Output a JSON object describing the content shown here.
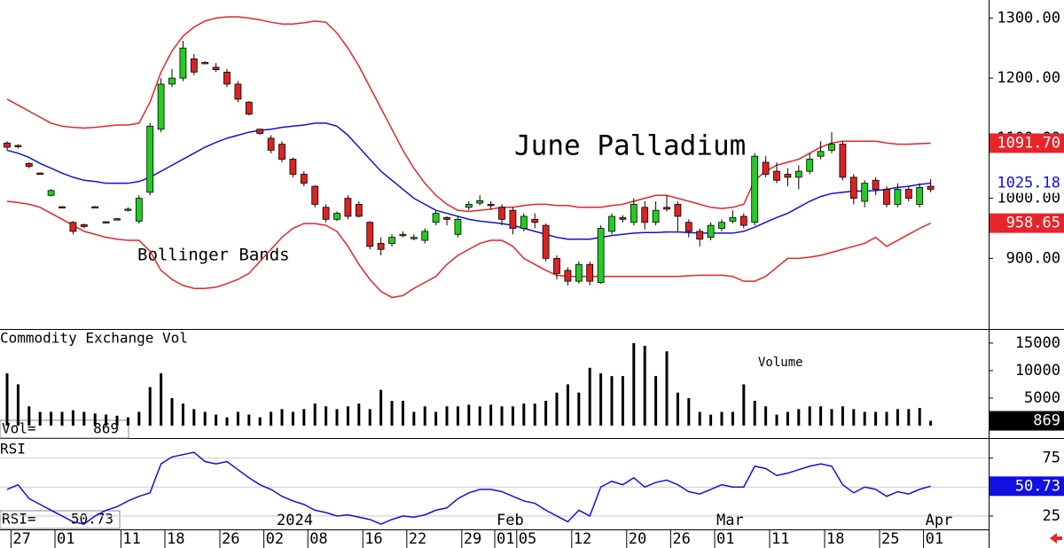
{
  "chart_data": [
    {
      "type": "candlestick",
      "title": "June Palladium",
      "annotation": "Bollinger Bands",
      "up_color": "#22cc22",
      "down_color": "#dd2222",
      "ylim": [
        784,
        1330
      ],
      "yticks": [
        {
          "value": 900,
          "label": "900.00"
        },
        {
          "value": 1000,
          "label": "1000.00"
        },
        {
          "value": 1100,
          "label": "1100.00"
        },
        {
          "value": 1200,
          "label": "1200.00"
        },
        {
          "value": 1300,
          "label": "1300.00"
        }
      ],
      "open": [
        1092,
        1088,
        1058,
        1042,
        1005,
        986,
        960,
        956,
        986,
        961,
        966,
        980,
        962,
        1010,
        1115,
        1190,
        1200,
        1232,
        1226,
        1218,
        1210,
        1190,
        1160,
        1115,
        1100,
        1090,
        1065,
        1040,
        1020,
        985,
        965,
        1000,
        990,
        960,
        925,
        925,
        940,
        935,
        930,
        960,
        968,
        940,
        985,
        992,
        990,
        985,
        980,
        950,
        965,
        955,
        900,
        880,
        862,
        890,
        860,
        945,
        968,
        960,
        985,
        960,
        985,
        990,
        960,
        945,
        935,
        950,
        962,
        970,
        960,
        1060,
        1045,
        1040,
        1035,
        1045,
        1070,
        1080,
        1090,
        1035,
        995,
        1030,
        1015,
        990,
        1015,
        990,
        1020
      ],
      "high": [
        1095,
        1090,
        1060,
        1043,
        1015,
        987,
        962,
        958,
        987,
        962,
        967,
        985,
        1005,
        1125,
        1200,
        1215,
        1262,
        1240,
        1228,
        1225,
        1215,
        1195,
        1162,
        1116,
        1105,
        1095,
        1068,
        1045,
        1022,
        990,
        978,
        1005,
        995,
        962,
        935,
        940,
        945,
        940,
        950,
        980,
        970,
        970,
        995,
        1005,
        995,
        990,
        985,
        975,
        975,
        958,
        905,
        885,
        895,
        895,
        955,
        975,
        972,
        1000,
        995,
        995,
        1005,
        995,
        965,
        950,
        960,
        965,
        980,
        975,
        1075,
        1070,
        1060,
        1050,
        1055,
        1075,
        1095,
        1110,
        1095,
        1040,
        1030,
        1035,
        1020,
        1025,
        1020,
        1025,
        1032
      ],
      "low": [
        1080,
        1083,
        1050,
        1040,
        1003,
        984,
        940,
        950,
        984,
        959,
        964,
        978,
        958,
        1005,
        1110,
        1185,
        1195,
        1205,
        1224,
        1210,
        1185,
        1160,
        1138,
        1106,
        1075,
        1060,
        1035,
        1020,
        985,
        960,
        962,
        965,
        968,
        915,
        905,
        920,
        935,
        930,
        925,
        955,
        955,
        935,
        980,
        988,
        982,
        955,
        940,
        945,
        950,
        895,
        865,
        855,
        858,
        855,
        858,
        940,
        960,
        955,
        948,
        955,
        978,
        945,
        935,
        920,
        930,
        945,
        958,
        950,
        955,
        1035,
        1025,
        1020,
        1015,
        1040,
        1065,
        1075,
        1030,
        990,
        985,
        1005,
        985,
        985,
        995,
        985,
        1010
      ],
      "close": [
        1085,
        1086,
        1053,
        1041,
        1013,
        985,
        945,
        953,
        985,
        960,
        965,
        982,
        1000,
        1120,
        1190,
        1200,
        1250,
        1210,
        1225,
        1214,
        1190,
        1165,
        1140,
        1108,
        1080,
        1065,
        1040,
        1025,
        990,
        965,
        975,
        970,
        970,
        920,
        915,
        935,
        940,
        935,
        945,
        975,
        965,
        965,
        990,
        996,
        988,
        965,
        950,
        970,
        960,
        900,
        875,
        862,
        890,
        862,
        950,
        970,
        965,
        990,
        960,
        980,
        982,
        970,
        945,
        932,
        955,
        960,
        968,
        955,
        1070,
        1040,
        1030,
        1035,
        1045,
        1065,
        1078,
        1090,
        1035,
        1000,
        1025,
        1015,
        990,
        1015,
        1000,
        1018,
        1015
      ],
      "bands": [
        {
          "color": "#e8242a",
          "values": [
            1165,
            1155,
            1145,
            1135,
            1125,
            1120,
            1118,
            1117,
            1118,
            1120,
            1122,
            1122,
            1125,
            1160,
            1210,
            1245,
            1270,
            1285,
            1295,
            1300,
            1302,
            1302,
            1300,
            1297,
            1293,
            1290,
            1290,
            1292,
            1295,
            1293,
            1275,
            1250,
            1220,
            1185,
            1150,
            1115,
            1080,
            1050,
            1025,
            1005,
            990,
            980,
            978,
            980,
            982,
            985,
            985,
            988,
            990,
            990,
            988,
            988,
            985,
            985,
            985,
            988,
            990,
            995,
            1000,
            1005,
            1005,
            1000,
            995,
            990,
            985,
            983,
            985,
            990,
            1030,
            1045,
            1055,
            1060,
            1065,
            1075,
            1085,
            1092,
            1095,
            1095,
            1095,
            1095,
            1092,
            1090,
            1090,
            1091,
            1091.7
          ]
        },
        {
          "color": "#1010e0",
          "values": [
            1080,
            1075,
            1068,
            1058,
            1050,
            1042,
            1035,
            1030,
            1028,
            1025,
            1025,
            1025,
            1028,
            1035,
            1045,
            1055,
            1065,
            1075,
            1085,
            1093,
            1100,
            1105,
            1110,
            1113,
            1115,
            1118,
            1120,
            1122,
            1125,
            1125,
            1120,
            1105,
            1085,
            1065,
            1045,
            1030,
            1015,
            1000,
            990,
            980,
            975,
            970,
            965,
            962,
            960,
            958,
            955,
            950,
            945,
            940,
            935,
            932,
            932,
            932,
            935,
            938,
            940,
            942,
            943,
            943,
            944,
            944,
            943,
            942,
            942,
            942,
            942,
            945,
            952,
            960,
            968,
            975,
            985,
            995,
            1003,
            1008,
            1010,
            1012,
            1012,
            1013,
            1015,
            1018,
            1020,
            1023,
            1025.18
          ]
        },
        {
          "color": "#e8242a",
          "values": [
            995,
            993,
            990,
            985,
            975,
            965,
            955,
            945,
            940,
            935,
            932,
            930,
            930,
            912,
            880,
            865,
            855,
            850,
            850,
            852,
            858,
            865,
            875,
            895,
            915,
            935,
            950,
            958,
            958,
            955,
            945,
            920,
            890,
            865,
            845,
            835,
            838,
            850,
            860,
            870,
            890,
            905,
            915,
            925,
            930,
            930,
            920,
            900,
            890,
            880,
            872,
            870,
            870,
            870,
            870,
            870,
            870,
            870,
            870,
            870,
            870,
            870,
            871,
            872,
            872,
            872,
            870,
            862,
            862,
            870,
            885,
            900,
            900,
            902,
            905,
            910,
            915,
            920,
            925,
            935,
            920,
            930,
            940,
            950,
            958.65
          ]
        }
      ],
      "badges": [
        {
          "value": 1091.7,
          "label": "1091.70",
          "color": "#e8242a",
          "text_color": "#ffffff"
        },
        {
          "value": 1025.18,
          "label": "1025.18",
          "color": "#ffffff",
          "text_color": "#1010e0"
        },
        {
          "value": 958.65,
          "label": "958.65",
          "color": "#e8242a",
          "text_color": "#ffffff"
        }
      ]
    },
    {
      "type": "bar",
      "title": "Commodity Exchange Vol",
      "annotation": "Volume",
      "color": "#000000",
      "ylim": [
        -2100,
        17400
      ],
      "yticks": [
        5000,
        10000,
        15000
      ],
      "values": [
        9500,
        7500,
        3500,
        2500,
        2500,
        2500,
        2800,
        2500,
        2200,
        2000,
        1800,
        1500,
        2500,
        7000,
        9500,
        5000,
        4000,
        3000,
        2500,
        2000,
        1500,
        2500,
        2000,
        1500,
        2500,
        3000,
        2500,
        3000,
        4000,
        3500,
        3000,
        3500,
        4000,
        3000,
        6500,
        4500,
        4500,
        2500,
        3500,
        2500,
        3500,
        3500,
        3800,
        3500,
        3800,
        3500,
        3500,
        4000,
        4000,
        4500,
        6000,
        7500,
        6000,
        10500,
        9500,
        9000,
        9000,
        15000,
        14500,
        9000,
        13500,
        6000,
        5000,
        2500,
        2000,
        2500,
        2500,
        7500,
        4500,
        3500,
        2000,
        2500,
        3000,
        3500,
        3500,
        3000,
        3500,
        3000,
        2500,
        2500,
        2500,
        3000,
        3000,
        3200,
        869
      ],
      "readout": {
        "text": "Vol=",
        "value": 869
      }
    },
    {
      "type": "line",
      "title": "RSI",
      "color": "#1010e0",
      "ylim": [
        15,
        90
      ],
      "yticks": [
        25,
        50,
        75
      ],
      "grid": true,
      "values": [
        48,
        52,
        40,
        35,
        30,
        25,
        20,
        18,
        25,
        30,
        33,
        38,
        42,
        45,
        70,
        76,
        78,
        80,
        72,
        70,
        72,
        65,
        58,
        52,
        48,
        42,
        38,
        35,
        30,
        28,
        25,
        26,
        24,
        22,
        18,
        22,
        25,
        24,
        26,
        30,
        32,
        40,
        45,
        48,
        48,
        46,
        42,
        38,
        36,
        30,
        25,
        20,
        30,
        25,
        50,
        55,
        52,
        58,
        50,
        54,
        56,
        52,
        46,
        44,
        48,
        52,
        50,
        50,
        68,
        66,
        60,
        62,
        65,
        68,
        70,
        68,
        52,
        45,
        50,
        48,
        42,
        46,
        44,
        48,
        50.73
      ],
      "readout": {
        "text": "RSI=",
        "value": 50.73
      },
      "categories": [
        null,
        "27",
        null,
        null,
        null,
        "01",
        null,
        null,
        null,
        null,
        null,
        "11",
        null,
        null,
        null,
        "18",
        null,
        null,
        null,
        null,
        "26",
        null,
        null,
        null,
        "02",
        null,
        null,
        null,
        "08",
        null,
        null,
        null,
        null,
        "16",
        null,
        null,
        null,
        "22",
        null,
        null,
        null,
        null,
        "29",
        null,
        null,
        "01",
        null,
        "05",
        null,
        null,
        null,
        null,
        "12",
        null,
        null,
        null,
        null,
        "20",
        null,
        null,
        null,
        "26",
        null,
        null,
        null,
        "01",
        null,
        null,
        null,
        null,
        "11",
        null,
        null,
        null,
        null,
        "18",
        null,
        null,
        null,
        null,
        "25",
        null,
        null,
        null,
        "01"
      ],
      "month_labels": [
        null,
        null,
        null,
        null,
        null,
        null,
        null,
        null,
        null,
        null,
        null,
        null,
        null,
        null,
        null,
        null,
        null,
        null,
        null,
        null,
        null,
        null,
        null,
        null,
        null,
        "2024",
        null,
        null,
        null,
        null,
        null,
        null,
        null,
        null,
        null,
        null,
        null,
        null,
        null,
        null,
        null,
        null,
        null,
        null,
        null,
        "Feb",
        null,
        null,
        null,
        null,
        null,
        null,
        null,
        null,
        null,
        null,
        null,
        null,
        null,
        null,
        null,
        null,
        null,
        null,
        null,
        "Mar",
        null,
        null,
        null,
        null,
        null,
        null,
        null,
        null,
        null,
        null,
        null,
        null,
        null,
        null,
        null,
        null,
        null,
        null,
        "Apr"
      ]
    }
  ]
}
